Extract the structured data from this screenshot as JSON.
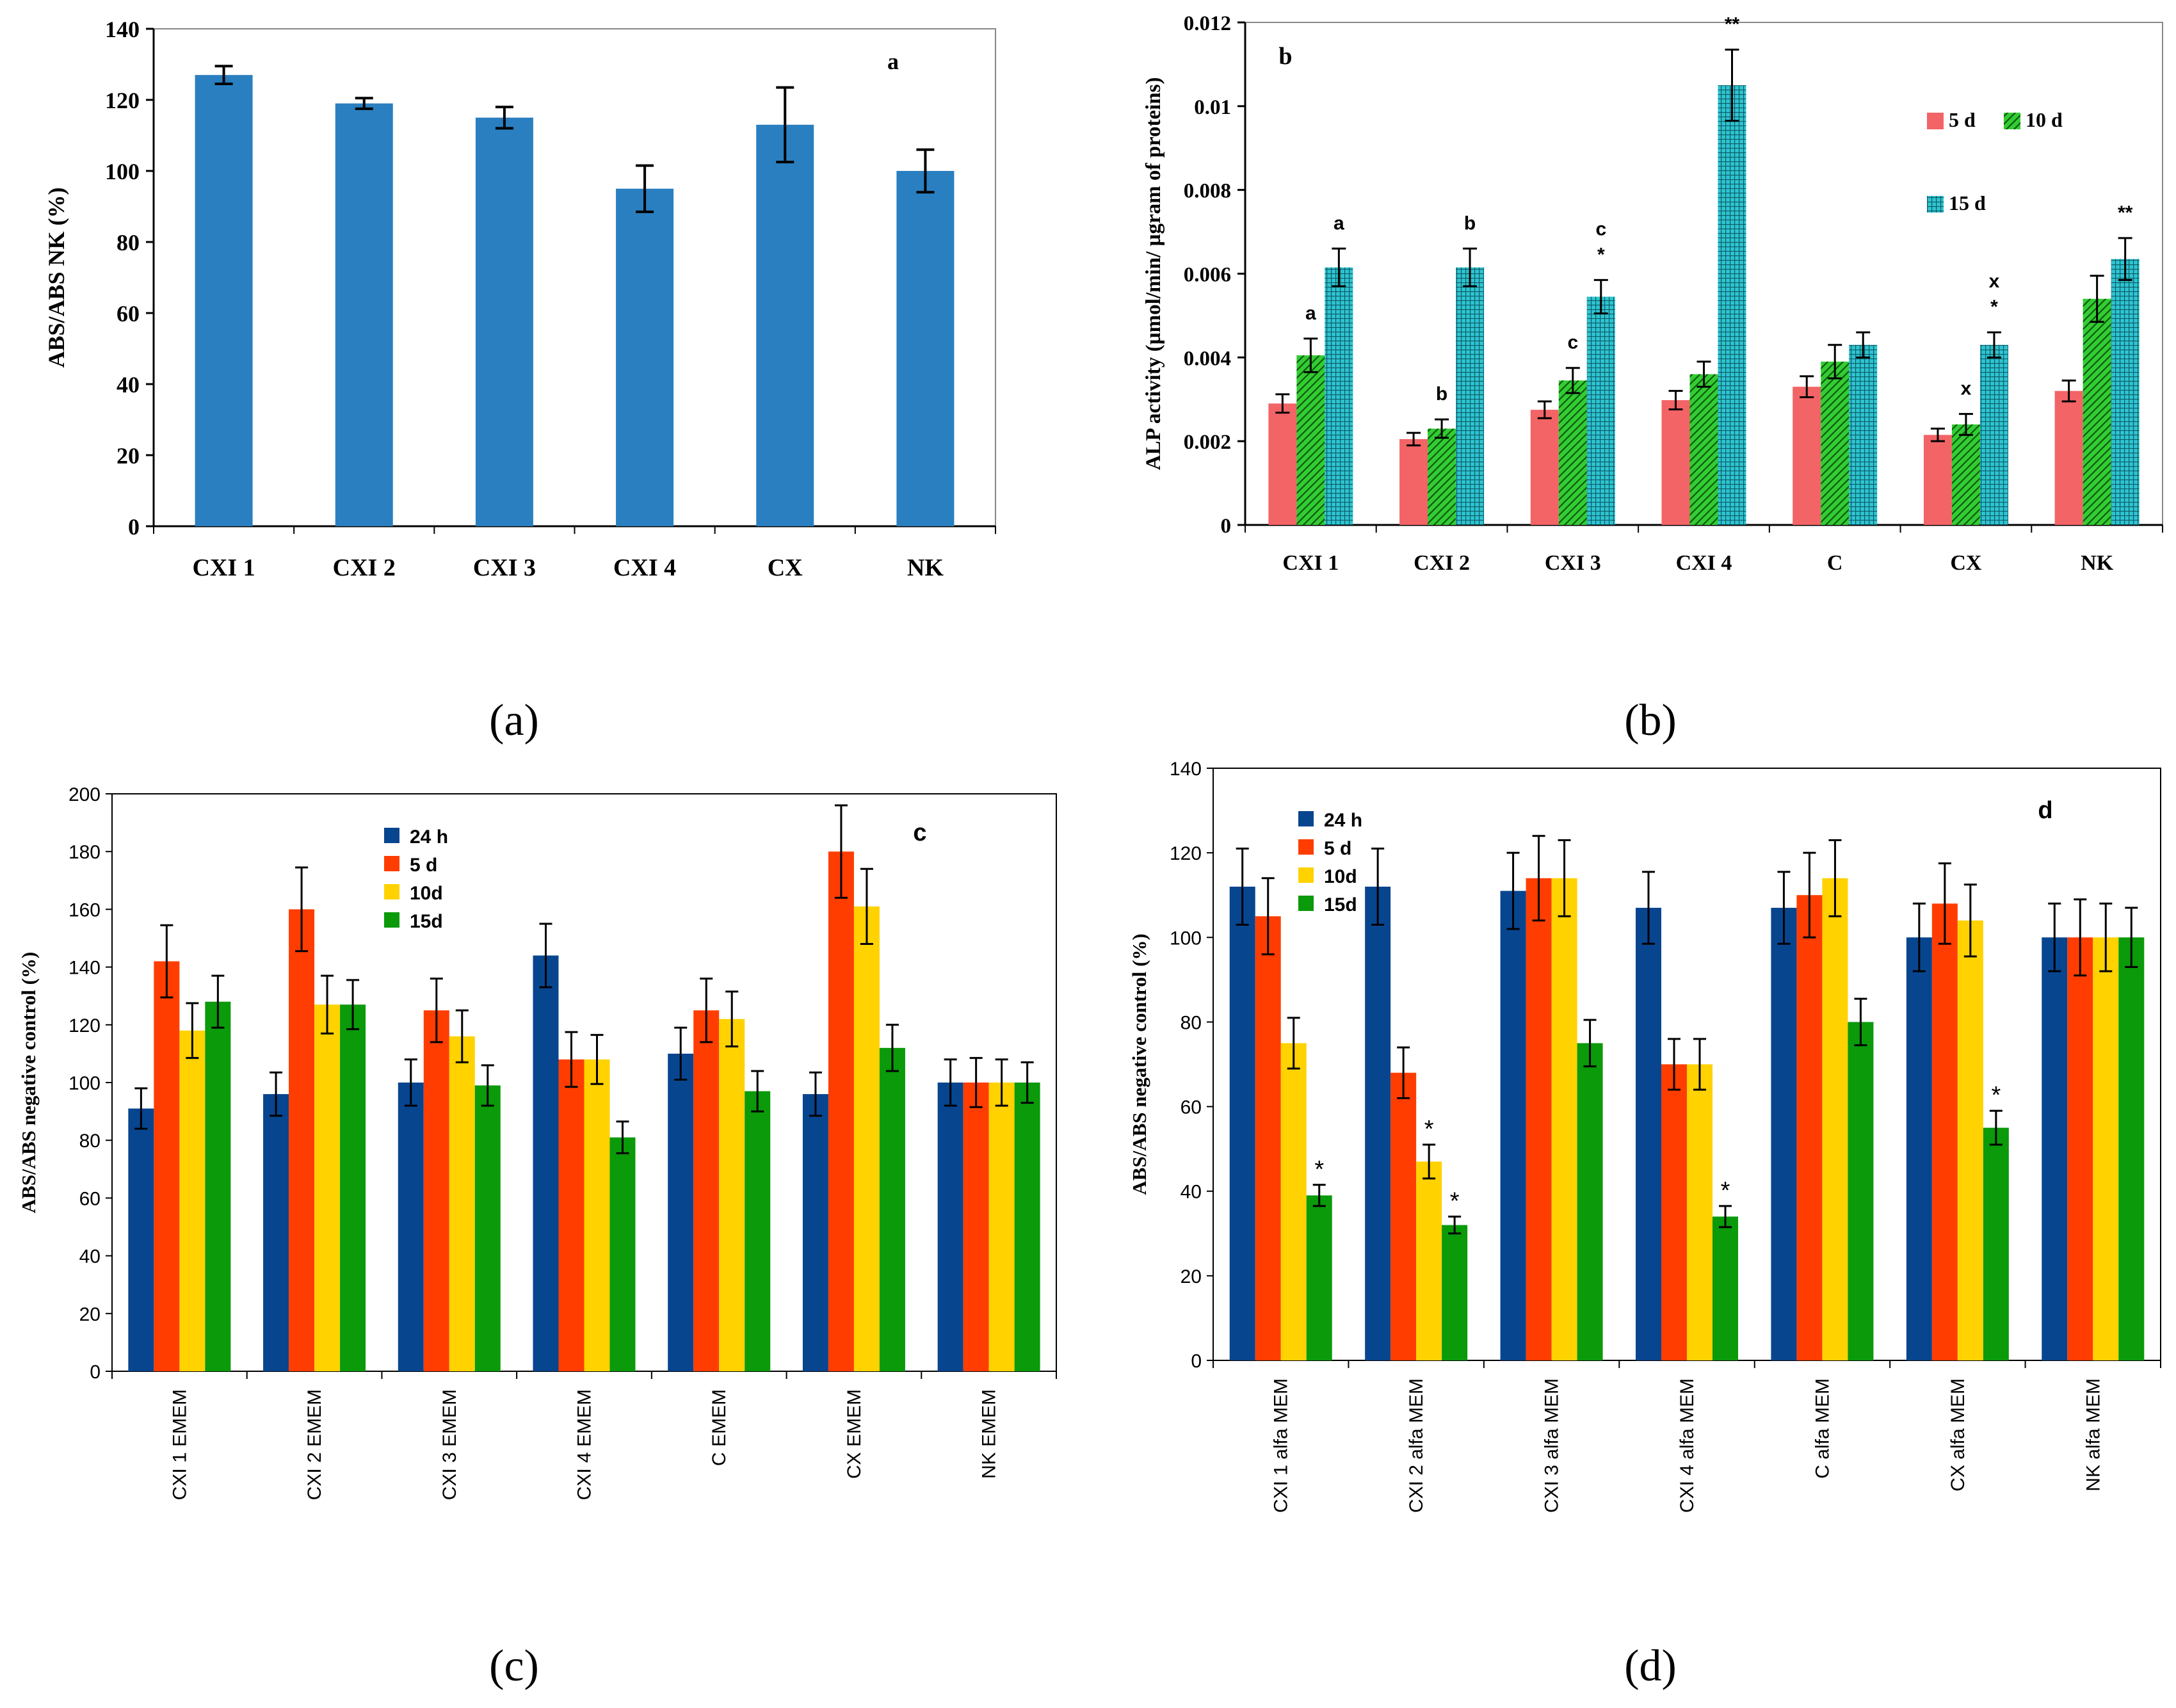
{
  "panel_captions": [
    "(a)",
    "(b)",
    "(c)",
    "(d)"
  ],
  "colors": {
    "a_bar": "#2a7fc0",
    "b_5d": "#f26466",
    "b_10d": "#33cc33",
    "b_15d": "#2ec4d0",
    "cd_24h": "#08458f",
    "cd_5d": "#ff3d00",
    "cd_10d": "#ffd200",
    "cd_15d": "#0a9a0a"
  },
  "chart_data": [
    {
      "id": "a",
      "type": "bar",
      "panel_label": "a",
      "ylabel": "ABS/ABS NK (%)",
      "xlabel": "",
      "ylim": [
        0,
        140
      ],
      "yticks": [
        "0",
        "20",
        "40",
        "60",
        "80",
        "100",
        "120",
        "140"
      ],
      "categories": [
        "CXI 1",
        "CXI 2",
        "CXI 3",
        "CXI 4",
        "CX",
        "NK"
      ],
      "series": [
        {
          "values": [
            127,
            119,
            115,
            95,
            113,
            100
          ],
          "errors": [
            2.5,
            1.5,
            3,
            6.5,
            10.5,
            6
          ]
        }
      ]
    },
    {
      "id": "b",
      "type": "bar",
      "panel_label": "b",
      "ylabel": "ALP activity (µmol/min/ µgram of proteins)",
      "xlabel": "",
      "ylim": [
        0,
        0.012
      ],
      "yticks": [
        "0",
        "0.002",
        "0.004",
        "0.006",
        "0.008",
        "0.01",
        "0.012"
      ],
      "categories": [
        "CXI 1",
        "CXI 2",
        "CXI 3",
        "CXI 4",
        "C",
        "CX",
        "NK"
      ],
      "series": [
        {
          "name": "5 d",
          "values": [
            0.0029,
            0.00205,
            0.00275,
            0.00298,
            0.0033,
            0.00215,
            0.0032
          ],
          "errors": [
            0.00022,
            0.00015,
            0.0002,
            0.00022,
            0.00025,
            0.00015,
            0.00025
          ]
        },
        {
          "name": "10 d",
          "values": [
            0.00405,
            0.0023,
            0.00345,
            0.0036,
            0.0039,
            0.0024,
            0.0054
          ],
          "errors": [
            0.0004,
            0.00022,
            0.0003,
            0.0003,
            0.0004,
            0.00025,
            0.00055
          ]
        },
        {
          "name": "15 d",
          "values": [
            0.00615,
            0.00615,
            0.00545,
            0.0105,
            0.0043,
            0.0043,
            0.00635
          ],
          "errors": [
            0.00045,
            0.00045,
            0.0004,
            0.00085,
            0.0003,
            0.0003,
            0.0005
          ]
        }
      ],
      "annotations": [
        {
          "category": 0,
          "series": 1,
          "text": "a"
        },
        {
          "category": 0,
          "series": 2,
          "text": "a"
        },
        {
          "category": 1,
          "series": 1,
          "text": "b"
        },
        {
          "category": 1,
          "series": 2,
          "text": "b"
        },
        {
          "category": 2,
          "series": 1,
          "text": "c"
        },
        {
          "category": 2,
          "series": 2,
          "text": "*"
        },
        {
          "category": 2,
          "series": 2,
          "text": "c"
        },
        {
          "category": 3,
          "series": 2,
          "text": "**"
        },
        {
          "category": 5,
          "series": 1,
          "text": "x"
        },
        {
          "category": 5,
          "series": 2,
          "text": "*"
        },
        {
          "category": 5,
          "series": 2,
          "text": "x"
        },
        {
          "category": 6,
          "series": 2,
          "text": "**"
        }
      ]
    },
    {
      "id": "c",
      "type": "bar",
      "panel_label": "c",
      "ylabel": "ABS/ABS  negative control (%)",
      "xlabel": "",
      "ylim": [
        0,
        200
      ],
      "yticks": [
        "0",
        "20",
        "40",
        "60",
        "80",
        "100",
        "120",
        "140",
        "160",
        "180",
        "200"
      ],
      "categories": [
        "CXI 1 EMEM",
        "CXI 2 EMEM",
        "CXI 3 EMEM",
        "CXI 4 EMEM",
        "C EMEM",
        "CX EMEM",
        "NK EMEM"
      ],
      "series": [
        {
          "name": "24 h",
          "values": [
            91,
            96,
            100,
            144,
            110,
            96,
            100
          ],
          "errors": [
            7,
            7.5,
            8,
            11,
            9,
            7.5,
            8
          ]
        },
        {
          "name": "5 d",
          "values": [
            142,
            160,
            125,
            108,
            125,
            180,
            100
          ],
          "errors": [
            12.5,
            14.5,
            11,
            9.5,
            11,
            16,
            8.5
          ]
        },
        {
          "name": "10d",
          "values": [
            118,
            127,
            116,
            108,
            122,
            161,
            100
          ],
          "errors": [
            9.5,
            10,
            9,
            8.5,
            9.5,
            13,
            8
          ]
        },
        {
          "name": "15d",
          "values": [
            128,
            127,
            99,
            81,
            97,
            112,
            100
          ],
          "errors": [
            9,
            8.5,
            7,
            5.5,
            7,
            8,
            7
          ]
        }
      ]
    },
    {
      "id": "d",
      "type": "bar",
      "panel_label": "d",
      "ylabel": "ABS/ABS  negative control (%)",
      "xlabel": "",
      "ylim": [
        0,
        140
      ],
      "yticks": [
        "0",
        "20",
        "40",
        "60",
        "80",
        "100",
        "120",
        "140"
      ],
      "categories": [
        "CXI 1 alfa MEM",
        "CXI 2 alfa MEM",
        "CXI 3 alfa MEM",
        "CXI 4 alfa MEM",
        "C alfa MEM",
        "CX alfa MEM",
        "NK alfa MEM"
      ],
      "series": [
        {
          "name": "24 h",
          "values": [
            112,
            112,
            111,
            107,
            107,
            100,
            100
          ],
          "errors": [
            9,
            9,
            9,
            8.5,
            8.5,
            8,
            8
          ]
        },
        {
          "name": "5 d",
          "values": [
            105,
            68,
            114,
            70,
            110,
            108,
            100
          ],
          "errors": [
            9,
            6,
            10,
            6,
            10,
            9.5,
            9
          ]
        },
        {
          "name": "10d",
          "values": [
            75,
            47,
            114,
            70,
            114,
            104,
            100
          ],
          "errors": [
            6,
            4,
            9,
            6,
            9,
            8.5,
            8
          ]
        },
        {
          "name": "15d",
          "values": [
            39,
            32,
            75,
            34,
            80,
            55,
            100
          ],
          "errors": [
            2.5,
            2,
            5.5,
            2.5,
            5.5,
            4,
            7
          ]
        }
      ],
      "annotations": [
        {
          "category": 0,
          "series": 3,
          "text": "*"
        },
        {
          "category": 1,
          "series": 2,
          "text": "*"
        },
        {
          "category": 1,
          "series": 3,
          "text": "*"
        },
        {
          "category": 3,
          "series": 3,
          "text": "*"
        },
        {
          "category": 5,
          "series": 3,
          "text": "*"
        }
      ]
    }
  ]
}
